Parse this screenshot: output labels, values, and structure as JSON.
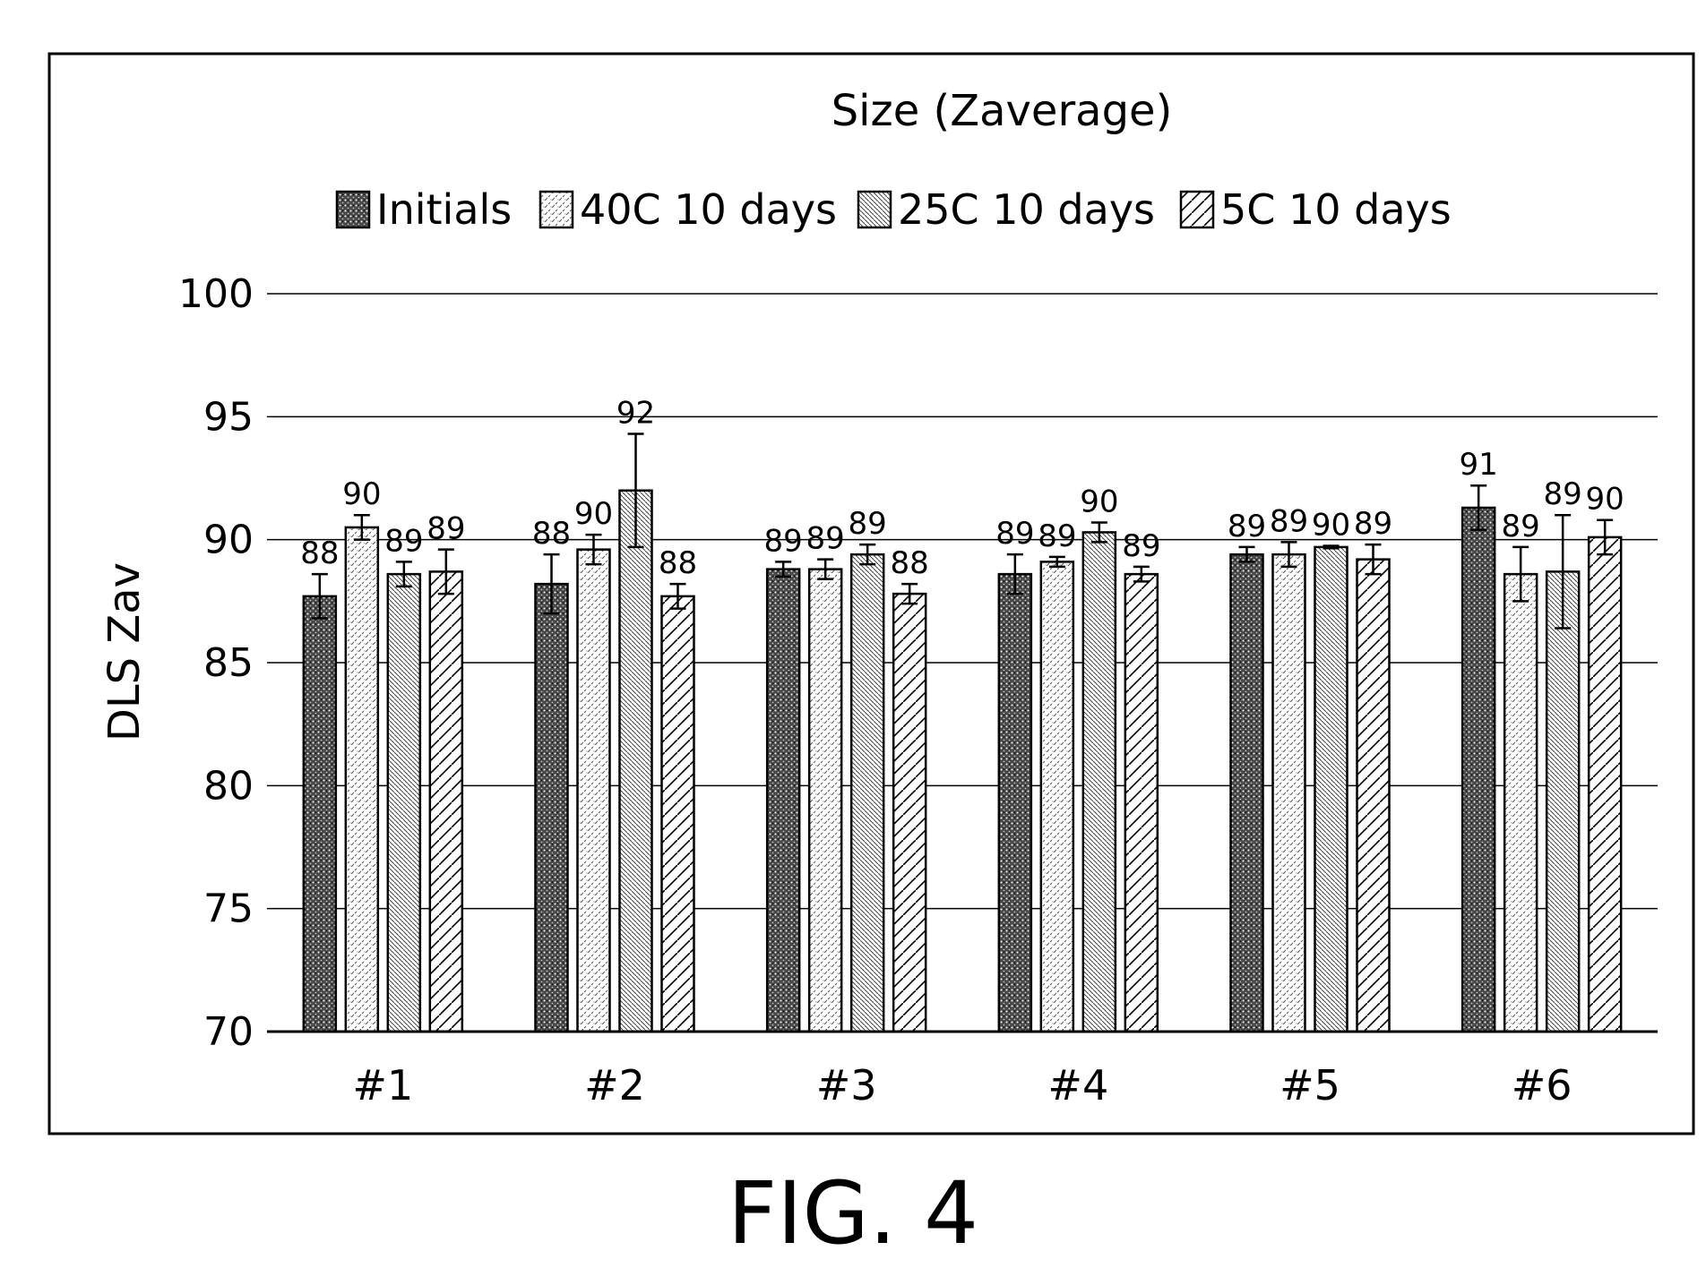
{
  "figure_caption": "FIG. 4",
  "chart_data": {
    "type": "bar",
    "title": "Size (Zaverage)",
    "xlabel": "",
    "ylabel": "DLS Zav",
    "ylim": [
      70,
      100
    ],
    "yticks": [
      70,
      75,
      80,
      85,
      90,
      95,
      100
    ],
    "grid": true,
    "legend_position": "top",
    "categories": [
      "#1",
      "#2",
      "#3",
      "#4",
      "#5",
      "#6"
    ],
    "series": [
      {
        "name": "Initials",
        "pattern": "dense-dots",
        "values": [
          87.7,
          88.2,
          88.8,
          88.6,
          89.4,
          91.3
        ],
        "error": [
          0.9,
          1.2,
          0.3,
          0.8,
          0.3,
          0.9
        ],
        "labels": [
          "88",
          "88",
          "89",
          "89",
          "89",
          "91"
        ]
      },
      {
        "name": "40C 10 days",
        "pattern": "light-dashes",
        "values": [
          90.5,
          89.6,
          88.8,
          89.1,
          89.4,
          88.6
        ],
        "error": [
          0.5,
          0.6,
          0.4,
          0.2,
          0.5,
          1.1
        ],
        "labels": [
          "90",
          "90",
          "89",
          "89",
          "89",
          "89"
        ]
      },
      {
        "name": "25C 10 days",
        "pattern": "back-diagonal",
        "values": [
          88.6,
          92.0,
          89.4,
          90.3,
          89.7,
          88.7
        ],
        "error": [
          0.5,
          2.3,
          0.4,
          0.4,
          0.05,
          2.3
        ],
        "labels": [
          "89",
          "92",
          "89",
          "90",
          "90",
          "89"
        ]
      },
      {
        "name": "5C 10 days",
        "pattern": "forward-diagonal",
        "values": [
          88.7,
          87.7,
          87.8,
          88.6,
          89.2,
          90.1
        ],
        "error": [
          0.9,
          0.5,
          0.4,
          0.3,
          0.6,
          0.7
        ],
        "labels": [
          "89",
          "88",
          "88",
          "89",
          "89",
          "90"
        ]
      }
    ]
  }
}
